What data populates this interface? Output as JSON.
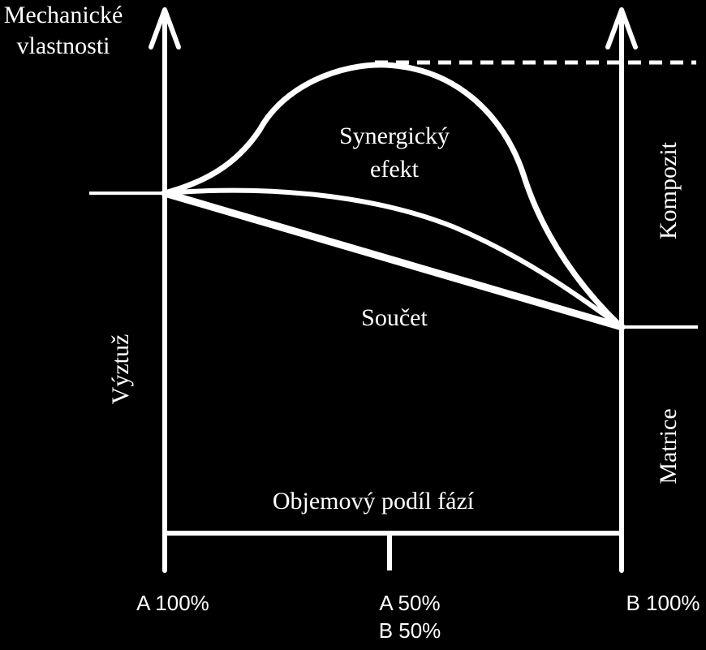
{
  "diagram": {
    "y_axis_label_line1": "Mechanické",
    "y_axis_label_line2": "vlastnosti",
    "synergy_label_line1": "Synergický",
    "synergy_label_line2": "efekt",
    "sum_label": "Součet",
    "left_side_label": "Výztuž",
    "right_top_label": "Kompozit",
    "right_bottom_label": "Matrice",
    "x_axis_label": "Objemový podíl fází",
    "tick_left": "A 100%",
    "tick_mid_line1": "A 50%",
    "tick_mid_line2": "B 50%",
    "tick_right": "B 100%",
    "line_color": "#ffffff",
    "background_color": "#000000"
  }
}
